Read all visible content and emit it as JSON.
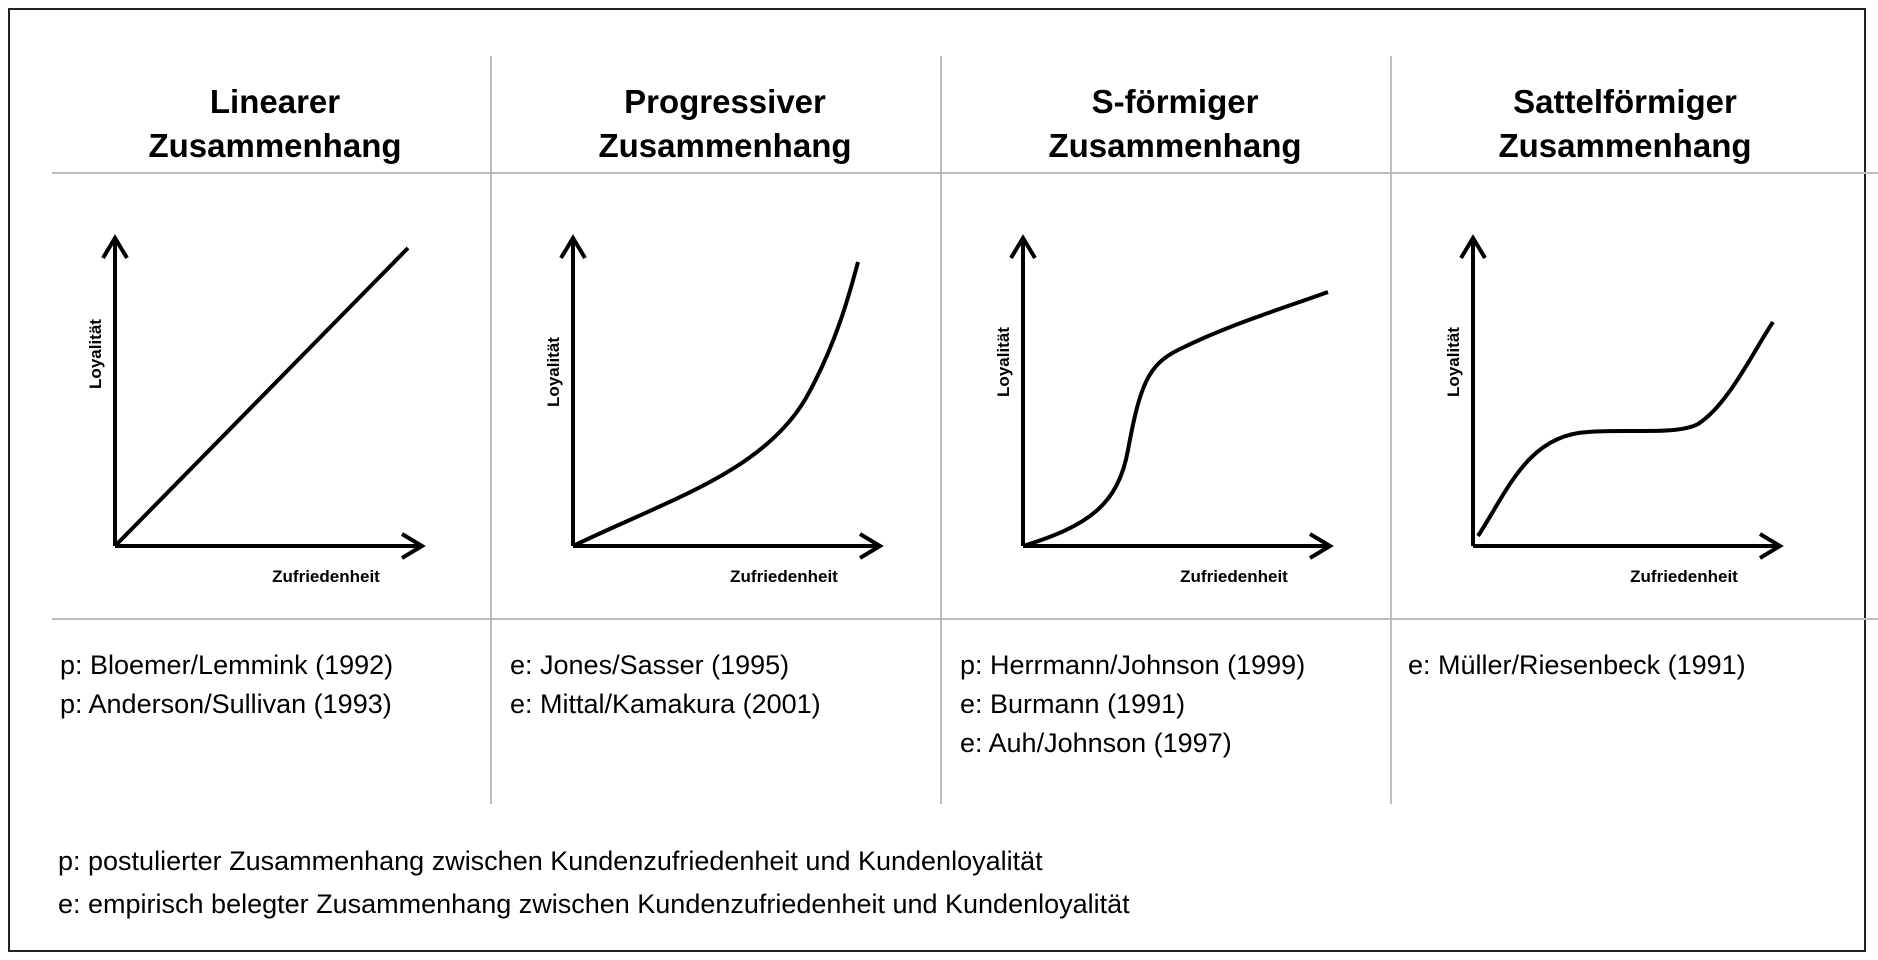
{
  "columns": [
    {
      "title_line1": "Linearer",
      "title_line2": "Zusammenhang",
      "curve_type": "linear",
      "y_axis_label": "Loyalität",
      "x_axis_label": "Zufriedenheit",
      "references": [
        "p: Bloemer/Lemmink (1992)",
        "p: Anderson/Sullivan (1993)"
      ]
    },
    {
      "title_line1": "Progressiver",
      "title_line2": "Zusammenhang",
      "curve_type": "progressive",
      "y_axis_label": "Loyalität",
      "x_axis_label": "Zufriedenheit",
      "references": [
        "e: Jones/Sasser (1995)",
        "e: Mittal/Kamakura (2001)"
      ]
    },
    {
      "title_line1": "S-förmiger",
      "title_line2": "Zusammenhang",
      "curve_type": "s-shaped",
      "y_axis_label": "Loyalität",
      "x_axis_label": "Zufriedenheit",
      "references": [
        "p: Herrmann/Johnson (1999)",
        "e: Burmann (1991)",
        "e: Auh/Johnson (1997)"
      ]
    },
    {
      "title_line1": "Sattelförmiger",
      "title_line2": "Zusammenhang",
      "curve_type": "saddle-shaped",
      "y_axis_label": "Loyalität",
      "x_axis_label": "Zufriedenheit",
      "references": [
        "e: Müller/Riesenbeck (1991)"
      ]
    }
  ],
  "legend": {
    "p": "p: postulierter Zusammenhang zwischen Kundenzufriedenheit und Kundenloyalität",
    "e": "e: empirisch belegter Zusammenhang zwischen Kundenzufriedenheit und Kundenloyalität"
  }
}
